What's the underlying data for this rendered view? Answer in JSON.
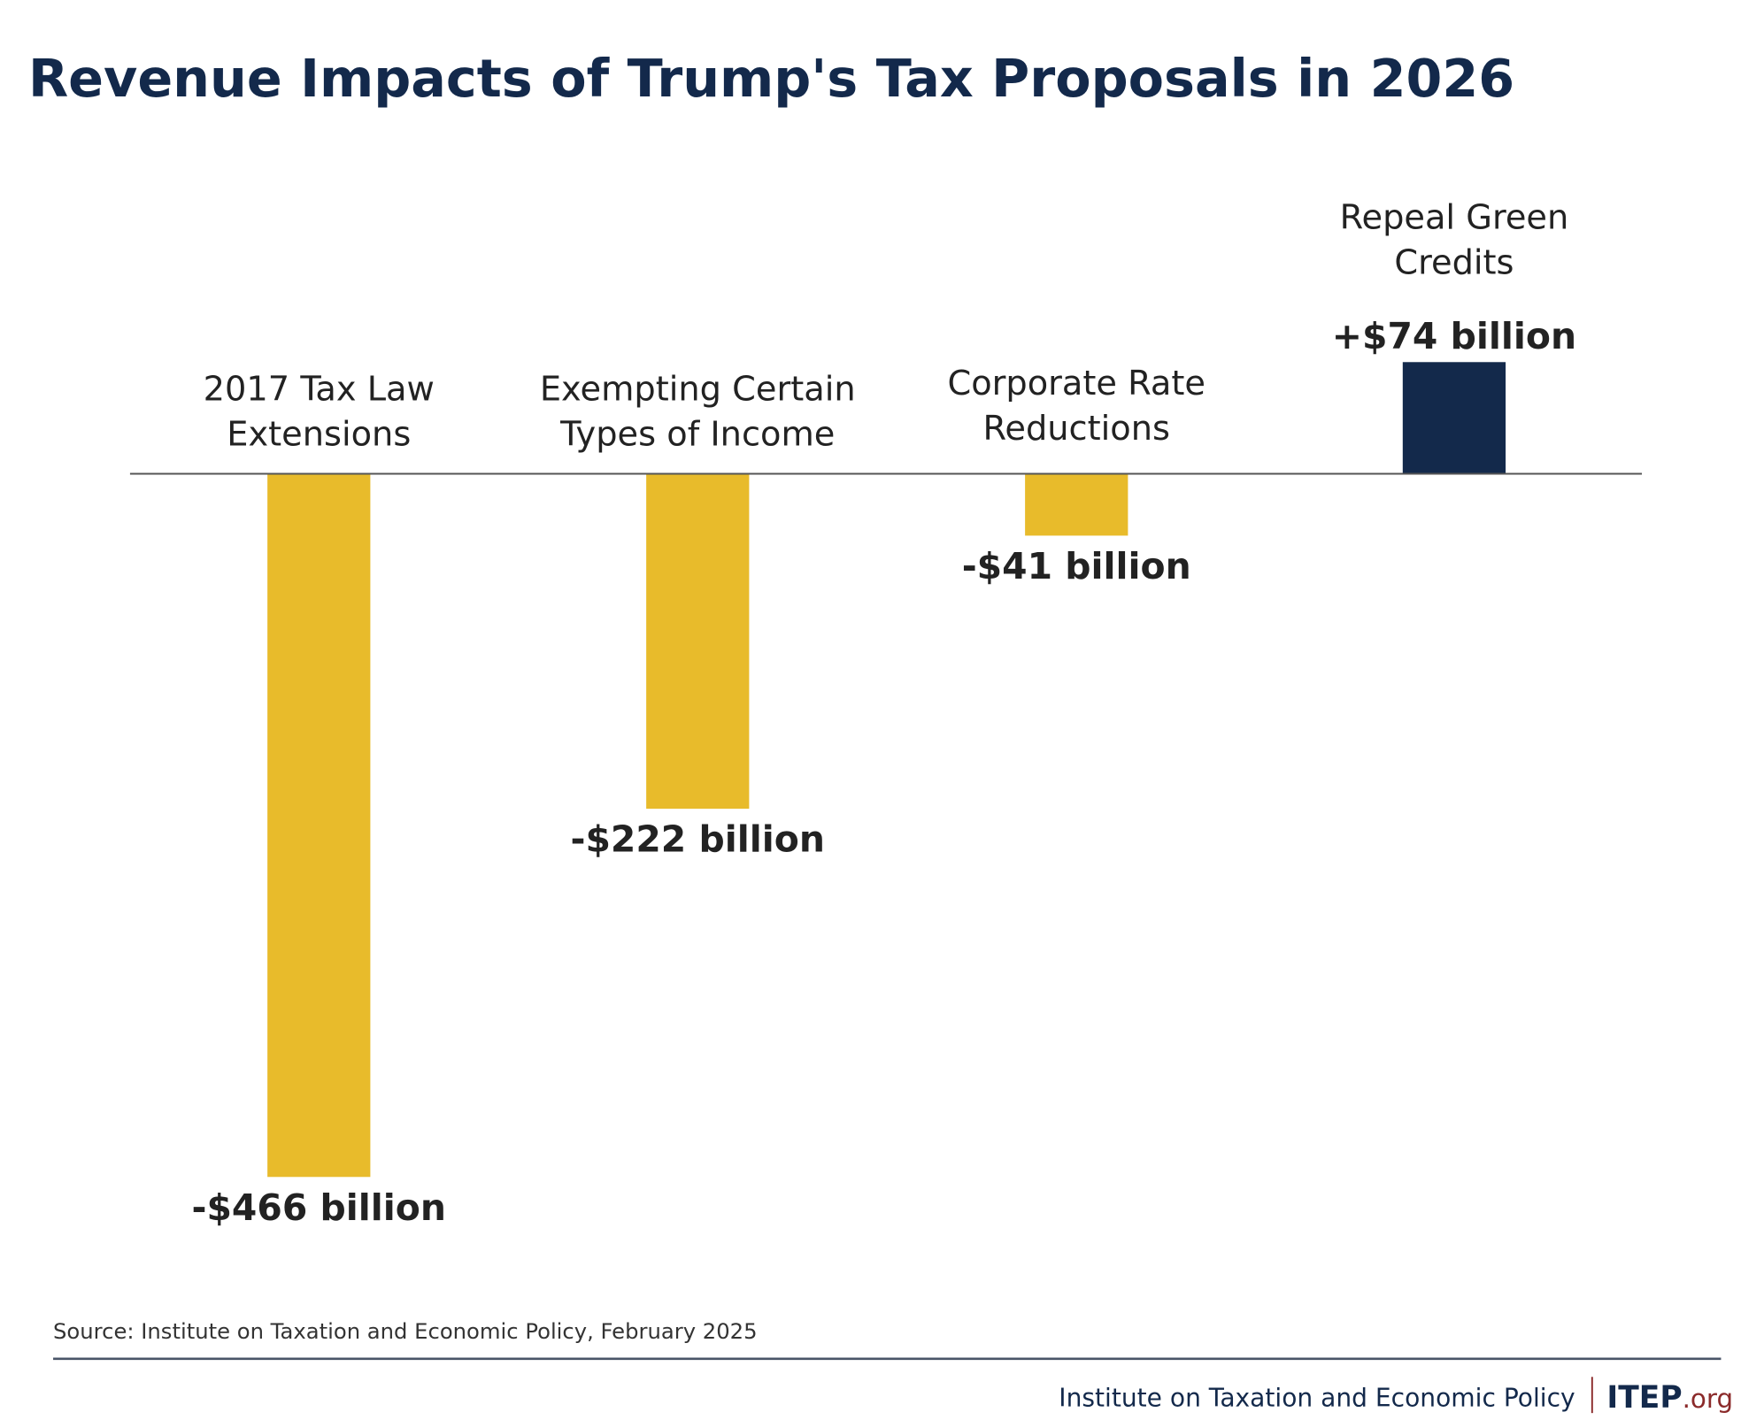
{
  "chart_data": {
    "type": "bar",
    "title": "Revenue Impacts of Trump's Tax Proposals in 2026",
    "categories": [
      [
        "2017 Tax Law",
        "Extensions"
      ],
      [
        "Exempting Certain",
        "Types of Income"
      ],
      [
        "Corporate Rate",
        "Reductions"
      ],
      [
        "Repeal Green",
        "Credits"
      ]
    ],
    "values": [
      -466,
      -222,
      -41,
      74
    ],
    "data_labels": [
      "-$466 billion",
      "-$222 billion",
      "-$41 billion",
      "+$74 billion"
    ],
    "unit": "billion dollars",
    "colors": {
      "negative": "#e8bb2b",
      "positive": "#13294b",
      "axis": "#555555"
    },
    "grid": false,
    "legend": "none"
  },
  "source": "Source: Institute on Taxation and Economic Policy, February 2025",
  "footer": {
    "org_name": "Institute on Taxation and Economic Policy",
    "logo_main": "ITEP",
    "logo_suffix": ".org"
  }
}
